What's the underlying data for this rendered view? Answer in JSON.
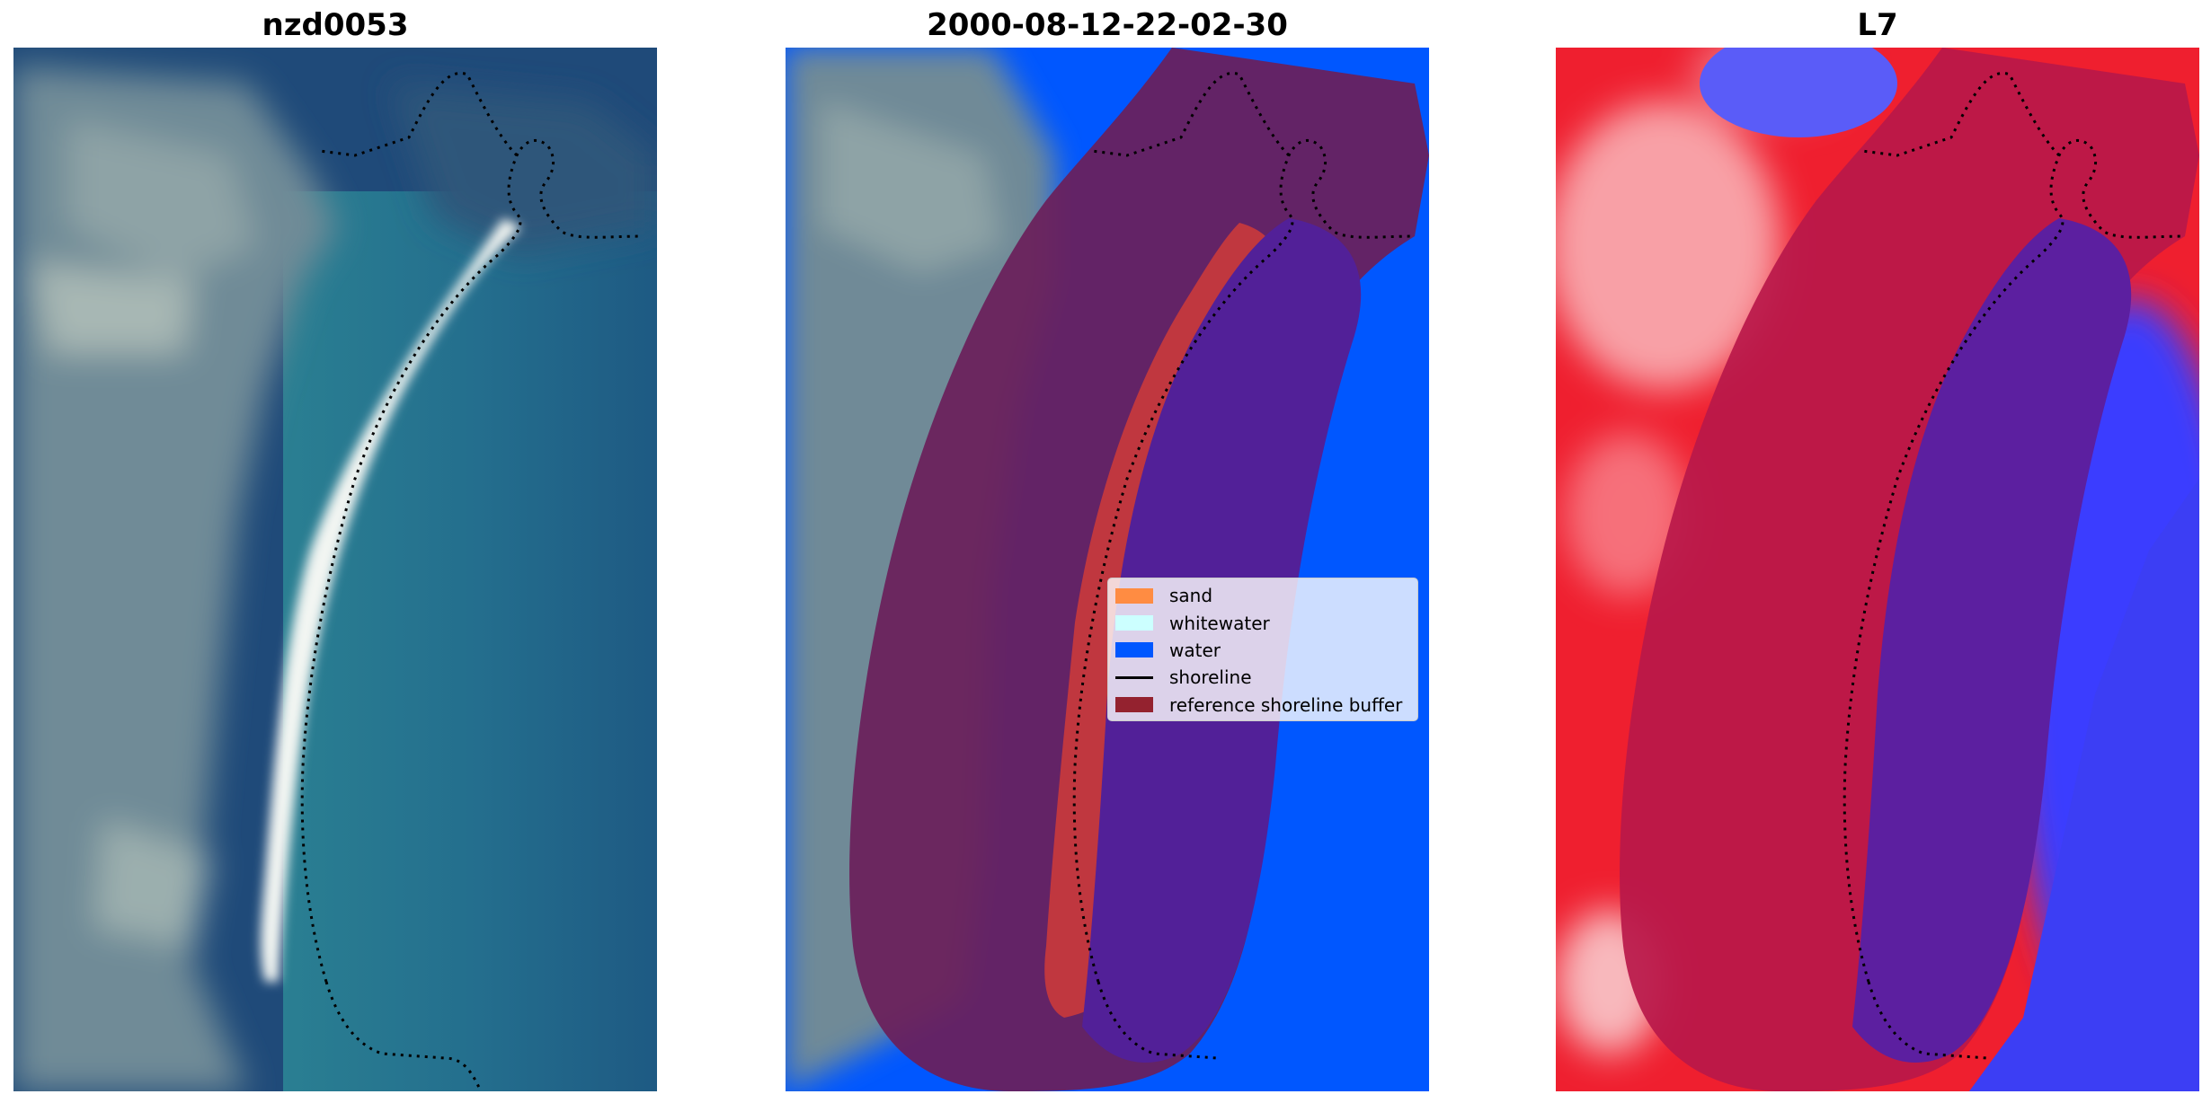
{
  "panels": [
    {
      "title": "nzd0053"
    },
    {
      "title": "2000-08-12-22-02-30"
    },
    {
      "title": "L7"
    }
  ],
  "legend": {
    "items": [
      {
        "label": "sand",
        "kind": "patch",
        "color": "#ff8c42"
      },
      {
        "label": "whitewater",
        "kind": "patch",
        "color": "#ccffff"
      },
      {
        "label": "water",
        "kind": "patch",
        "color": "#0057ff"
      },
      {
        "label": "shoreline",
        "kind": "line",
        "color": "#000000"
      },
      {
        "label": "reference shoreline buffer",
        "kind": "patch",
        "color": "#94222f"
      }
    ]
  },
  "colors": {
    "deep_water": "#1f4a79",
    "shallow_water": "#2a7a92",
    "land_gray": "#6f8a97",
    "beach_white": "#f4f6f4",
    "water_class": "#0057ff",
    "buffer": "#6a1f5a",
    "sand_strip": "#c0373f",
    "water_in_buffer": "#522098",
    "index_red": "#ef1f2f",
    "index_blue": "#3a3cff",
    "index_buffer": "#b8184a",
    "index_water_buffer": "#5c1fa0"
  }
}
